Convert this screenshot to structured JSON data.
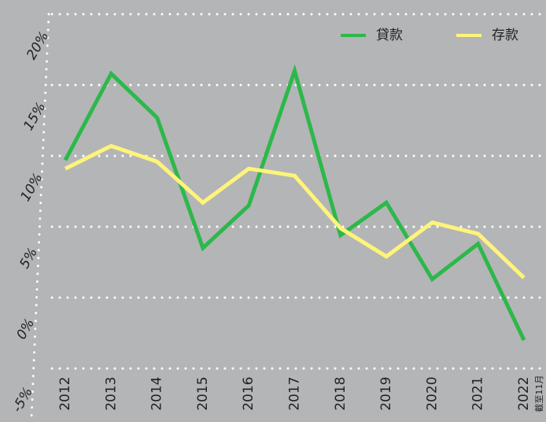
{
  "chart_data": {
    "type": "line",
    "categories": [
      "2012",
      "2013",
      "2014",
      "2015",
      "2016",
      "2017",
      "2018",
      "2019",
      "2020",
      "2021",
      "2022"
    ],
    "annotation": "截至11月",
    "series": [
      {
        "name": "貸款",
        "color": "#2db84a",
        "values": [
          9.7,
          15.8,
          12.7,
          3.5,
          6.5,
          16.0,
          4.4,
          6.7,
          1.3,
          3.8,
          -3.0
        ]
      },
      {
        "name": "存款",
        "color": "#fff47a",
        "values": [
          9.1,
          10.7,
          9.6,
          6.7,
          9.1,
          8.6,
          4.9,
          2.9,
          5.3,
          4.5,
          1.4
        ]
      }
    ],
    "ylim": [
      -5,
      20
    ],
    "yticks": [
      {
        "value": -5,
        "label": "-5%"
      },
      {
        "value": 0,
        "label": "0%"
      },
      {
        "value": 5,
        "label": "5%"
      },
      {
        "value": 10,
        "label": "10%"
      },
      {
        "value": 15,
        "label": "15%"
      },
      {
        "value": 20,
        "label": "20%"
      }
    ],
    "grid": true,
    "legend": "top-right"
  }
}
